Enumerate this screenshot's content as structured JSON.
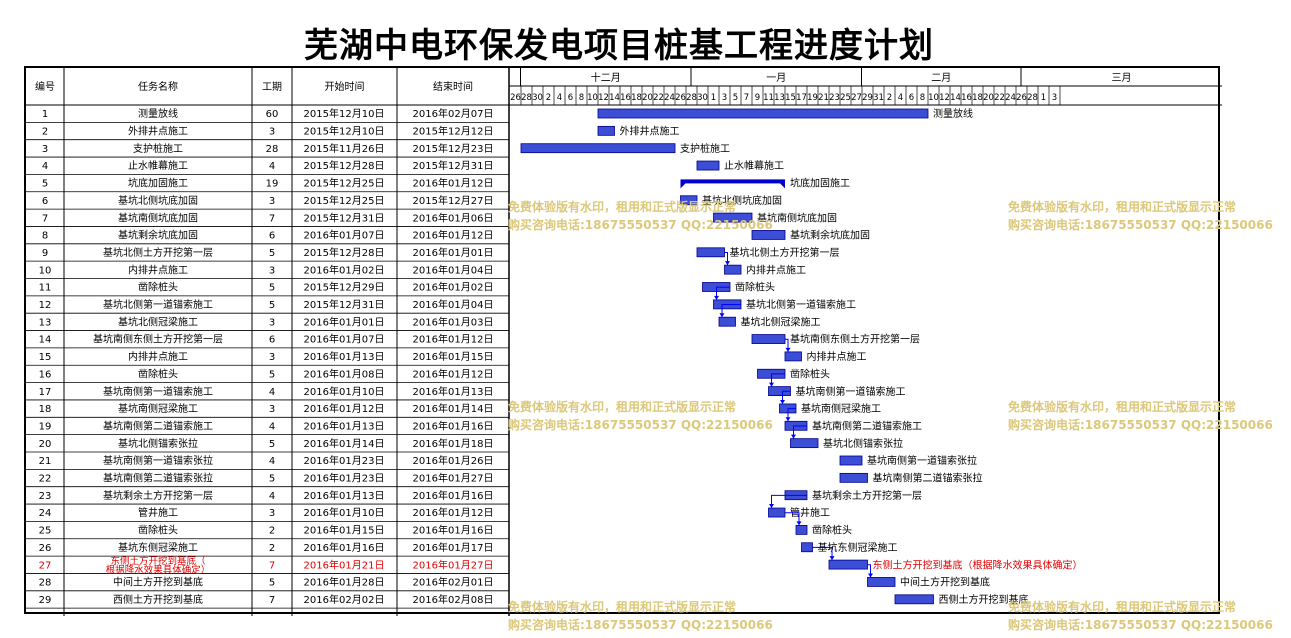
{
  "title": "芜湖中电环保发电项目桩基工程进度计划",
  "table": {
    "headers": [
      "编号",
      "任务名称",
      "工期",
      "开始时间",
      "结束时间"
    ],
    "months": [
      {
        "label": "十二月",
        "start_day": 2
      },
      {
        "label": "一月",
        "start_day": 33
      },
      {
        "label": "二月",
        "start_day": 64
      },
      {
        "label": "三月",
        "start_day": 93
      }
    ],
    "day_labels": [
      "26",
      "28",
      "30",
      "2",
      "4",
      "6",
      "8",
      "10",
      "12",
      "14",
      "16",
      "18",
      "20",
      "22",
      "24",
      "26",
      "28",
      "30",
      "1",
      "3",
      "5",
      "7",
      "9",
      "11",
      "13",
      "15",
      "17",
      "19",
      "21",
      "23",
      "25",
      "27",
      "29",
      "31",
      "2",
      "4",
      "6",
      "8",
      "10",
      "12",
      "14",
      "16",
      "18",
      "20",
      "22",
      "24",
      "26",
      "28",
      "1",
      "3"
    ],
    "rows": [
      {
        "id": "1",
        "name": "测量放线",
        "duration": "60",
        "start": "2015年12月10日",
        "end": "2016年02月07日",
        "bar_label": "测量放线",
        "s": 16,
        "e": 75
      },
      {
        "id": "2",
        "name": "外排井点施工",
        "duration": "3",
        "start": "2015年12月10日",
        "end": "2015年12月12日",
        "bar_label": "外排井点施工",
        "s": 16,
        "e": 18
      },
      {
        "id": "3",
        "name": "支护桩施工",
        "duration": "28",
        "start": "2015年11月26日",
        "end": "2015年12月23日",
        "bar_label": "支护桩施工",
        "s": 2,
        "e": 29
      },
      {
        "id": "4",
        "name": "止水帷幕施工",
        "duration": "4",
        "start": "2015年12月28日",
        "end": "2015年12月31日",
        "bar_label": "止水帷幕施工",
        "s": 34,
        "e": 37
      },
      {
        "id": "5",
        "name": "坑底加固施工",
        "duration": "19",
        "start": "2015年12月25日",
        "end": "2016年01月12日",
        "bar_label": "坑底加固施工",
        "s": 31,
        "e": 49,
        "summary": true
      },
      {
        "id": "6",
        "name": "基坑北侧坑底加固",
        "duration": "3",
        "start": "2015年12月25日",
        "end": "2015年12月27日",
        "bar_label": "基坑北侧坑底加固",
        "s": 31,
        "e": 33
      },
      {
        "id": "7",
        "name": "基坑南侧坑底加固",
        "duration": "7",
        "start": "2015年12月31日",
        "end": "2016年01月06日",
        "bar_label": "基坑南侧坑底加固",
        "s": 37,
        "e": 43
      },
      {
        "id": "8",
        "name": "基坑剩余坑底加固",
        "duration": "6",
        "start": "2016年01月07日",
        "end": "2016年01月12日",
        "bar_label": "基坑剩余坑底加固",
        "s": 44,
        "e": 49
      },
      {
        "id": "9",
        "name": "基坑北侧土方开挖第一层",
        "duration": "5",
        "start": "2015年12月28日",
        "end": "2016年01月01日",
        "bar_label": "基坑北侧土方开挖第一层",
        "s": 34,
        "e": 38
      },
      {
        "id": "10",
        "name": "内排井点施工",
        "duration": "3",
        "start": "2016年01月02日",
        "end": "2016年01月04日",
        "bar_label": "内排井点施工",
        "s": 39,
        "e": 41
      },
      {
        "id": "11",
        "name": "凿除桩头",
        "duration": "5",
        "start": "2015年12月29日",
        "end": "2016年01月02日",
        "bar_label": "凿除桩头",
        "s": 35,
        "e": 39
      },
      {
        "id": "12",
        "name": "基坑北侧第一道锚索施工",
        "duration": "5",
        "start": "2015年12月31日",
        "end": "2016年01月04日",
        "bar_label": "基坑北侧第一道锚索施工",
        "s": 37,
        "e": 41
      },
      {
        "id": "13",
        "name": "基坑北侧冠梁施工",
        "duration": "3",
        "start": "2016年01月01日",
        "end": "2016年01月03日",
        "bar_label": "基坑北侧冠梁施工",
        "s": 38,
        "e": 40
      },
      {
        "id": "14",
        "name": "基坑南侧东侧土方开挖第一层",
        "duration": "6",
        "start": "2016年01月07日",
        "end": "2016年01月12日",
        "bar_label": "基坑南侧东侧土方开挖第一层",
        "s": 44,
        "e": 49
      },
      {
        "id": "15",
        "name": "内排井点施工",
        "duration": "3",
        "start": "2016年01月13日",
        "end": "2016年01月15日",
        "bar_label": "内排井点施工",
        "s": 50,
        "e": 52
      },
      {
        "id": "16",
        "name": "凿除桩头",
        "duration": "5",
        "start": "2016年01月08日",
        "end": "2016年01月12日",
        "bar_label": "凿除桩头",
        "s": 45,
        "e": 49
      },
      {
        "id": "17",
        "name": "基坑南侧第一道锚索施工",
        "duration": "4",
        "start": "2016年01月10日",
        "end": "2016年01月13日",
        "bar_label": "基坑南侧第一道锚索施工",
        "s": 47,
        "e": 50
      },
      {
        "id": "18",
        "name": "基坑南侧冠梁施工",
        "duration": "3",
        "start": "2016年01月12日",
        "end": "2016年01月14日",
        "bar_label": "基坑南侧冠梁施工",
        "s": 49,
        "e": 51
      },
      {
        "id": "19",
        "name": "基坑南侧第二道锚索施工",
        "duration": "4",
        "start": "2016年01月13日",
        "end": "2016年01月16日",
        "bar_label": "基坑南侧第二道锚索施工",
        "s": 50,
        "e": 53
      },
      {
        "id": "20",
        "name": "基坑北侧锚索张拉",
        "duration": "5",
        "start": "2016年01月14日",
        "end": "2016年01月18日",
        "bar_label": "基坑北侧锚索张拉",
        "s": 51,
        "e": 55
      },
      {
        "id": "21",
        "name": "基坑南侧第一道锚索张拉",
        "duration": "4",
        "start": "2016年01月23日",
        "end": "2016年01月26日",
        "bar_label": "基坑南侧第一道锚索张拉",
        "s": 60,
        "e": 63
      },
      {
        "id": "22",
        "name": "基坑南侧第二道锚索张拉",
        "duration": "5",
        "start": "2016年01月23日",
        "end": "2016年01月27日",
        "bar_label": "基坑南侧第二道锚索张拉",
        "s": 60,
        "e": 64
      },
      {
        "id": "23",
        "name": "基坑剩余土方开挖第一层",
        "duration": "4",
        "start": "2016年01月13日",
        "end": "2016年01月16日",
        "bar_label": "基坑剩余土方开挖第一层",
        "s": 50,
        "e": 53
      },
      {
        "id": "24",
        "name": "管井施工",
        "duration": "3",
        "start": "2016年01月10日",
        "end": "2016年01月12日",
        "bar_label": "管井施工",
        "s": 47,
        "e": 49
      },
      {
        "id": "25",
        "name": "凿除桩头",
        "duration": "2",
        "start": "2016年01月15日",
        "end": "2016年01月16日",
        "bar_label": "凿除桩头",
        "s": 52,
        "e": 53
      },
      {
        "id": "26",
        "name": "基坑东侧冠梁施工",
        "duration": "2",
        "start": "2016年01月16日",
        "end": "2016年01月17日",
        "bar_label": "基坑东侧冠梁施工",
        "s": 53,
        "e": 54
      },
      {
        "id": "27",
        "name": "东侧土方开挖到基底（根据降水效果具体确定）",
        "duration": "7",
        "start": "2016年01月21日",
        "end": "2016年01月27日",
        "bar_label": "东侧土方开挖到基底（根据降水效果具体确定）",
        "s": 58,
        "e": 64,
        "highlight": true
      },
      {
        "id": "28",
        "name": "中间土方开挖到基底",
        "duration": "5",
        "start": "2016年01月28日",
        "end": "2016年02月01日",
        "bar_label": "中间土方开挖到基底",
        "s": 65,
        "e": 69
      },
      {
        "id": "29",
        "name": "西侧土方开挖到基底",
        "duration": "7",
        "start": "2016年02月02日",
        "end": "2016年02月08日",
        "bar_label": "西侧土方开挖到基底",
        "s": 70,
        "e": 76
      }
    ]
  },
  "watermark": {
    "line1": "免费体验版有水印，租用和正式版显示正常",
    "line2": "购买咨询电话:18675550537 QQ:22150066"
  },
  "colors": {
    "bar_fill": "#3c4ed6",
    "bar_stroke": "#00008b",
    "summary": "#0000cc",
    "link": "#0000ff",
    "highlight_text": "#e00000",
    "watermark": "#dcc87a"
  }
}
